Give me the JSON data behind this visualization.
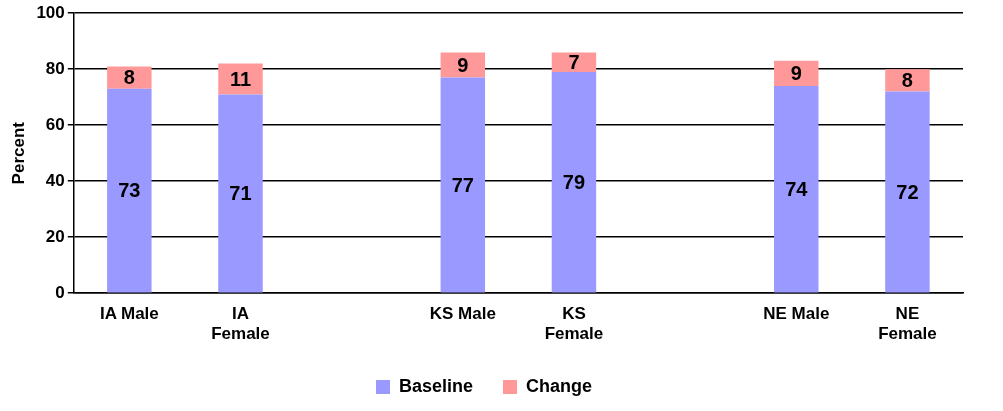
{
  "chart_data": {
    "type": "bar",
    "stacked": true,
    "ylabel": "Percent",
    "categories": [
      "IA Male",
      "IA Female",
      null,
      "KS Male",
      "KS Female",
      null,
      "NE Male",
      "NE Female"
    ],
    "series": [
      {
        "name": "Baseline",
        "color": "#9999ff",
        "values": [
          73,
          71,
          null,
          77,
          79,
          null,
          74,
          72
        ]
      },
      {
        "name": "Change",
        "color": "#ff9999",
        "values": [
          8,
          11,
          null,
          9,
          7,
          null,
          9,
          8
        ]
      }
    ],
    "ylim": [
      0,
      100
    ],
    "yticks": [
      0,
      20,
      40,
      60,
      80,
      100
    ],
    "grid": "y",
    "legend": "bottom",
    "data_labels": true
  }
}
